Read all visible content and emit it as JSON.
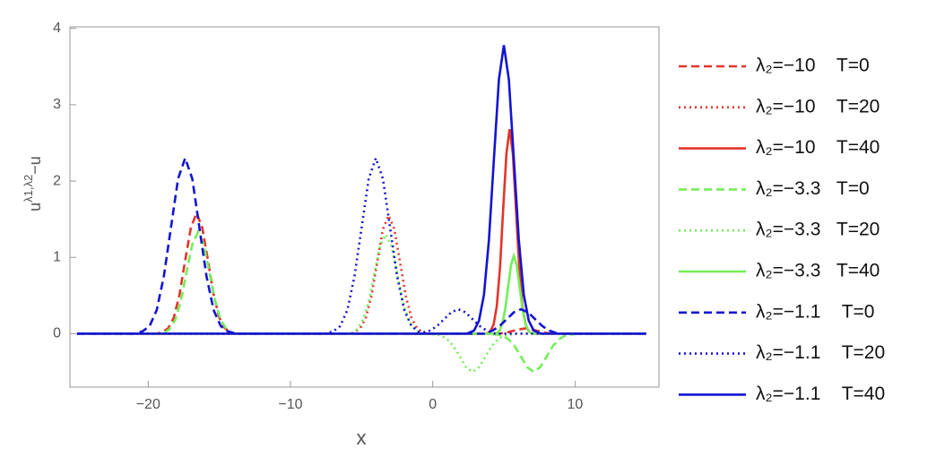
{
  "chart_data": {
    "type": "line",
    "xlabel": "x",
    "ylabel": {
      "base": "u",
      "sup": "λ1,λ2",
      "tail": "−u"
    },
    "xlim": [
      -25.5,
      15.9
    ],
    "ylim": [
      -0.7,
      4.02
    ],
    "xticks": [
      {
        "value": -20,
        "label": "−20"
      },
      {
        "value": -10,
        "label": "−10"
      },
      0,
      10
    ],
    "yticks": [
      0,
      1,
      2,
      3,
      4
    ],
    "grid": false,
    "legend": "right",
    "series": [
      {
        "name": "λ₂=−10    T=0",
        "color": "#e3352a",
        "dash": "dashed",
        "x": [
          -25,
          -19.4,
          -19.0,
          -18.6,
          -18.2,
          -17.8,
          -17.4,
          -17.0,
          -16.6,
          -16.2,
          -15.8,
          -15.4,
          -15.0,
          -14.6,
          -14.2,
          -13.8,
          4.7,
          5.3,
          5.9,
          6.5,
          7.1,
          7.7,
          8.3,
          15
        ],
        "values": [
          0,
          0,
          0.02,
          0.07,
          0.21,
          0.51,
          0.96,
          1.39,
          1.58,
          1.39,
          0.96,
          0.51,
          0.21,
          0.07,
          0.02,
          0,
          0,
          0.02,
          0.05,
          0.07,
          0.05,
          0.02,
          0,
          0
        ]
      },
      {
        "name": "λ₂=−10    T=20",
        "color": "#e3352a",
        "dash": "dotted",
        "x": [
          -25,
          -5.9,
          -5.5,
          -5.1,
          -4.7,
          -4.3,
          -3.9,
          -3.5,
          -3.1,
          -2.7,
          -2.3,
          -1.9,
          -1.5,
          -1.1,
          -0.7,
          -0.3,
          15
        ],
        "values": [
          0,
          0,
          0.02,
          0.07,
          0.21,
          0.5,
          0.94,
          1.37,
          1.55,
          1.37,
          0.94,
          0.5,
          0.21,
          0.07,
          0.02,
          0,
          0
        ]
      },
      {
        "name": "λ₂=−10    T=40",
        "color": "#e3352a",
        "dash": "solid",
        "x": [
          -25,
          3.8,
          4.05,
          4.28,
          4.5,
          4.73,
          4.95,
          5.18,
          5.4,
          5.63,
          5.85,
          6.08,
          6.3,
          6.53,
          6.75,
          7.0,
          15
        ],
        "values": [
          0,
          0,
          0.03,
          0.12,
          0.36,
          0.87,
          1.63,
          2.36,
          2.68,
          2.36,
          1.63,
          0.87,
          0.36,
          0.12,
          0.03,
          0,
          0
        ]
      },
      {
        "name": "λ₂=−3.3   T=0",
        "color": "#74ee58",
        "dash": "dashed",
        "x": [
          -25,
          -19.3,
          -18.9,
          -18.5,
          -18.1,
          -17.7,
          -17.3,
          -16.9,
          -16.5,
          -16.1,
          -15.7,
          -15.3,
          -14.9,
          -14.5,
          -14.1,
          -13.7,
          3.9,
          4.4,
          4.85,
          5.3,
          5.75,
          6.2,
          6.65,
          7.1,
          7.55,
          8.0,
          8.45,
          8.9,
          9.35,
          9.8,
          10.3,
          15
        ],
        "values": [
          0,
          0,
          0.01,
          0.06,
          0.18,
          0.43,
          0.81,
          1.17,
          1.33,
          1.17,
          0.81,
          0.43,
          0.18,
          0.06,
          0.01,
          0,
          0,
          -0.01,
          -0.02,
          -0.07,
          -0.16,
          -0.3,
          -0.44,
          -0.5,
          -0.44,
          -0.3,
          -0.16,
          -0.07,
          -0.02,
          -0.01,
          0,
          0
        ]
      },
      {
        "name": "λ₂=−3.3   T=20",
        "color": "#74ee58",
        "dash": "dotted",
        "x": [
          -25,
          -6.1,
          -5.7,
          -5.3,
          -4.9,
          -4.5,
          -4.1,
          -3.7,
          -3.3,
          -2.9,
          -2.5,
          -2.1,
          -1.7,
          -1.3,
          -0.9,
          -0.4,
          0.1,
          0.55,
          1.0,
          1.45,
          1.9,
          2.35,
          2.8,
          3.25,
          3.7,
          4.15,
          4.6,
          5.05,
          5.5,
          6.0,
          15
        ],
        "values": [
          0,
          0,
          0.01,
          0.06,
          0.18,
          0.42,
          0.79,
          1.15,
          1.3,
          1.15,
          0.79,
          0.42,
          0.18,
          0.06,
          0.01,
          0,
          -0.01,
          -0.02,
          -0.07,
          -0.16,
          -0.3,
          -0.44,
          -0.5,
          -0.44,
          -0.3,
          -0.16,
          -0.07,
          -0.02,
          -0.01,
          0,
          0
        ]
      },
      {
        "name": "λ₂=−3.3   T=40",
        "color": "#74ee58",
        "dash": "solid",
        "x": [
          -25,
          4.3,
          4.5,
          4.7,
          4.9,
          5.1,
          5.3,
          5.5,
          5.7,
          5.9,
          6.1,
          6.3,
          6.5,
          6.7,
          6.9,
          7.1,
          15
        ],
        "values": [
          0,
          0,
          0.01,
          0.04,
          0.14,
          0.33,
          0.62,
          0.9,
          1.02,
          0.9,
          0.62,
          0.33,
          0.14,
          0.04,
          0.01,
          0,
          0
        ]
      },
      {
        "name": "λ₂=−1.1    T=0",
        "color": "#1414d2",
        "dash": "dashed",
        "x": [
          -25,
          -21.0,
          -20.4,
          -19.9,
          -19.4,
          -18.9,
          -18.4,
          -17.9,
          -17.4,
          -16.9,
          -16.4,
          -15.9,
          -15.4,
          -14.9,
          -14.4,
          -13.8,
          3.6,
          4.2,
          4.7,
          5.2,
          5.7,
          6.2,
          6.7,
          7.2,
          7.7,
          8.2,
          8.8,
          15
        ],
        "values": [
          0,
          0,
          0.03,
          0.1,
          0.31,
          0.75,
          1.39,
          2.03,
          2.3,
          2.03,
          1.39,
          0.75,
          0.31,
          0.1,
          0.03,
          0,
          0,
          0.04,
          0.1,
          0.19,
          0.28,
          0.32,
          0.28,
          0.19,
          0.1,
          0.04,
          0,
          0
        ]
      },
      {
        "name": "λ₂=−1.1    T=20",
        "color": "#1414d2",
        "dash": "dotted",
        "x": [
          -25,
          -7.6,
          -7.0,
          -6.5,
          -6.0,
          -5.5,
          -5.0,
          -4.5,
          -4.0,
          -3.5,
          -3.0,
          -2.5,
          -2.0,
          -1.5,
          -1.0,
          -0.6,
          -0.2,
          0.3,
          0.8,
          1.3,
          1.8,
          2.3,
          2.8,
          3.3,
          3.8,
          4.4,
          15
        ],
        "values": [
          0,
          0,
          0.03,
          0.1,
          0.31,
          0.75,
          1.39,
          2.03,
          2.3,
          2.03,
          1.39,
          0.75,
          0.31,
          0.1,
          0.03,
          0.02,
          0.04,
          0.1,
          0.19,
          0.28,
          0.32,
          0.28,
          0.19,
          0.1,
          0.04,
          0,
          0
        ]
      },
      {
        "name": "λ₂=−1.1    T=40",
        "color": "#1414d2",
        "dash": "solid",
        "x": [
          -25,
          2.4,
          2.9,
          3.25,
          3.6,
          3.95,
          4.3,
          4.65,
          5.0,
          5.35,
          5.7,
          6.05,
          6.4,
          6.75,
          7.1,
          7.6,
          15
        ],
        "values": [
          0,
          0,
          0.04,
          0.17,
          0.51,
          1.23,
          2.29,
          3.33,
          3.78,
          3.33,
          2.29,
          1.23,
          0.51,
          0.17,
          0.04,
          0,
          0
        ]
      }
    ]
  }
}
